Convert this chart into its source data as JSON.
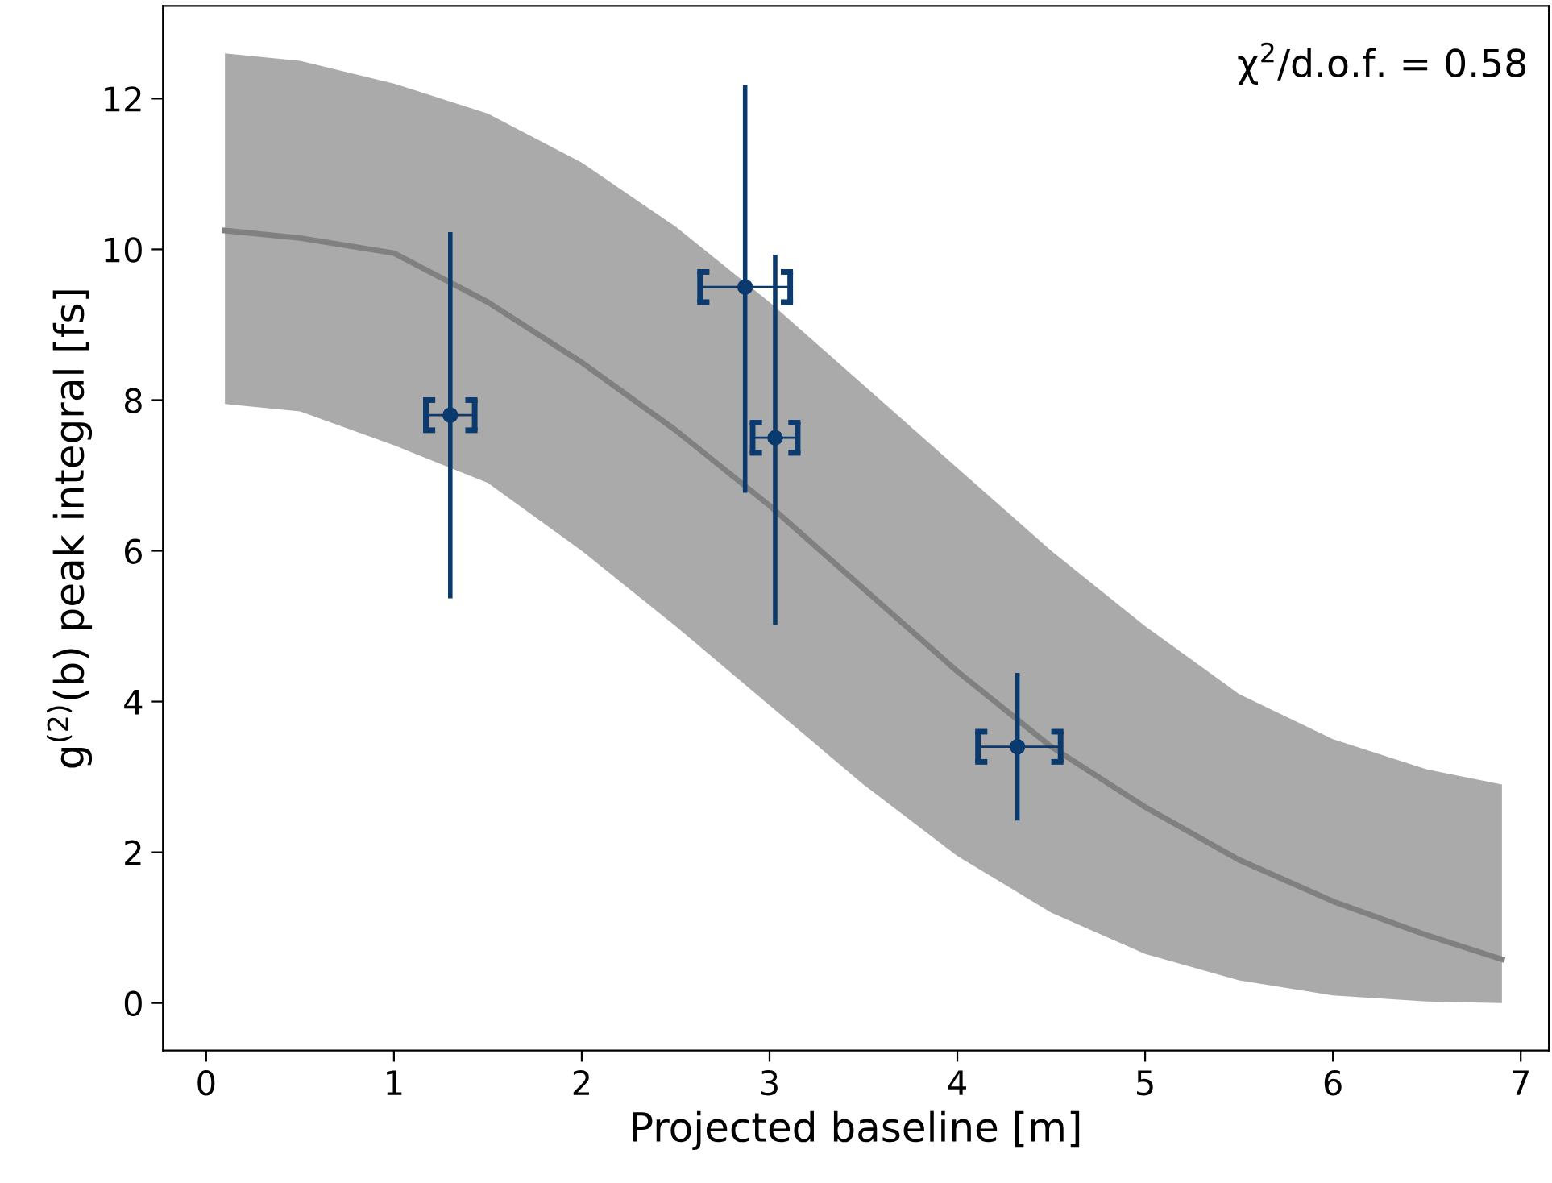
{
  "chart_data": {
    "type": "scatter",
    "xlabel": "Projected baseline [m]",
    "ylabel": "g$^{(2)}$(b) peak integral [fs]",
    "xlim": [
      -0.23,
      7.15
    ],
    "ylim": [
      -0.63,
      13.23
    ],
    "xticks": [
      0,
      1,
      2,
      3,
      4,
      5,
      6,
      7
    ],
    "yticks": [
      0,
      2,
      4,
      6,
      8,
      10,
      12
    ],
    "grid": false,
    "annotations": [
      "χ$^{2}$/d.o.f. = 0.58"
    ],
    "series": [
      {
        "type": "line",
        "color": "#808080",
        "x": [
          0.1,
          0.5,
          1,
          1.5,
          2,
          2.5,
          3,
          3.5,
          4,
          4.5,
          5,
          5.5,
          6,
          6.5,
          6.9
        ],
        "values": [
          10.25,
          10.15,
          9.95,
          9.3,
          8.5,
          7.6,
          6.6,
          5.5,
          4.4,
          3.4,
          2.6,
          1.9,
          1.35,
          0.9,
          0.58
        ],
        "lower": [
          7.95,
          7.85,
          7.4,
          6.9,
          6.0,
          5.0,
          3.95,
          2.9,
          1.95,
          1.2,
          0.65,
          0.3,
          0.1,
          0.02,
          0.0
        ],
        "upper": [
          12.6,
          12.5,
          12.2,
          11.8,
          11.15,
          10.3,
          9.3,
          8.2,
          7.1,
          6.0,
          5.0,
          4.1,
          3.5,
          3.1,
          2.9
        ]
      },
      {
        "color": "#0b3a6e",
        "marker": "circle",
        "x": [
          1.3,
          2.87,
          3.03,
          4.32
        ],
        "values": [
          7.8,
          9.5,
          7.5,
          3.4
        ],
        "errors": [
          [
            5.4,
            10.2
          ],
          [
            6.8,
            12.15
          ],
          [
            5.05,
            9.9
          ],
          [
            2.45,
            4.35
          ]
        ],
        "xerrors": [
          [
            1.17,
            1.43
          ],
          [
            2.63,
            3.11
          ],
          [
            2.91,
            3.15
          ],
          [
            4.11,
            4.55
          ]
        ]
      }
    ]
  }
}
